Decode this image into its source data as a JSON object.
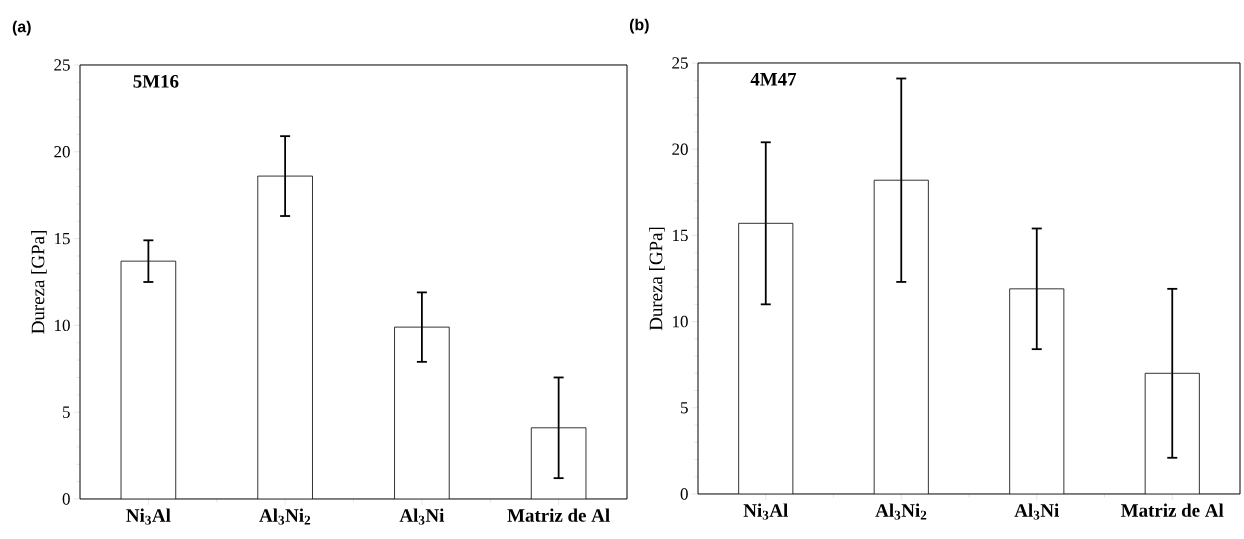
{
  "chart_data": [
    {
      "type": "bar",
      "title": "(a)",
      "ylabel": "Dureza [GPa]",
      "annotations": [
        "5M16"
      ],
      "categories": [
        "Ni$_{3}$Al",
        "Al$_{3}$Ni$_{2}$",
        "Al$_{3}$Ni",
        "Matriz de Al"
      ],
      "values": [
        13.7,
        18.6,
        9.9,
        4.1
      ],
      "errors": [
        1.2,
        2.3,
        2.0,
        2.9
      ],
      "color": "#ffffff",
      "ylim": [
        0,
        25
      ],
      "yticks": [
        0,
        5,
        10,
        15,
        20,
        25
      ]
    },
    {
      "type": "bar",
      "title": "(b)",
      "ylabel": "Dureza [GPa]",
      "annotations": [
        "4M47"
      ],
      "categories": [
        "Ni$_{3}$Al",
        "Al$_{3}$Ni$_{2}$",
        "Al$_{3}$Ni",
        "Matriz de Al"
      ],
      "values": [
        15.7,
        18.2,
        11.9,
        7.0
      ],
      "errors": [
        4.7,
        5.9,
        3.5,
        4.9
      ],
      "color": "#ffffff",
      "ylim": [
        0,
        25
      ],
      "yticks": [
        0,
        5,
        10,
        15,
        20,
        25
      ]
    }
  ]
}
